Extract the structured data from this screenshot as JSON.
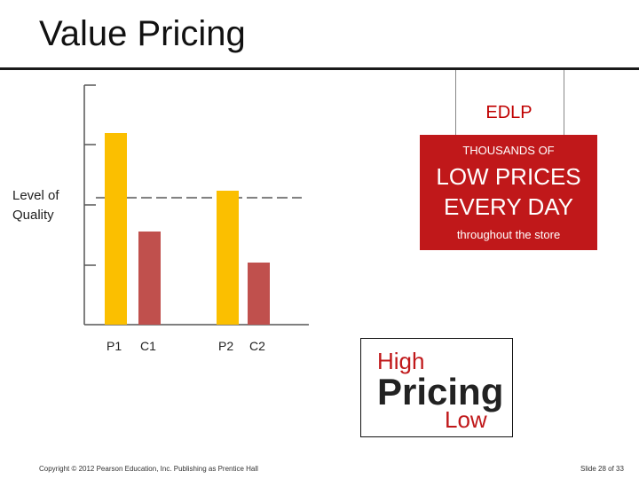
{
  "slide": {
    "title": "Value Pricing",
    "footer_copyright": "Copyright © 2012 Pearson Education, Inc. Publishing as Prentice Hall",
    "footer_slide": "Slide 28 of 33"
  },
  "quality_label": "Level of Quality",
  "chart_data": {
    "type": "bar",
    "categories": [
      "P1",
      "C1",
      "P2",
      "C2"
    ],
    "values": [
      4,
      1.95,
      2.8,
      1.3
    ],
    "ylabel": "Level of Quality",
    "ylim": [
      0,
      5
    ],
    "bar_colors": [
      "#fbbf00",
      "#c0504d",
      "#fbbf00",
      "#c0504d"
    ],
    "reference_line": {
      "style": "dashed",
      "value": 2.65,
      "color": "#808080"
    }
  },
  "edlp": {
    "title": "EDLP",
    "top": "THOUSANDS OF",
    "big": "LOW PRICES EVERY DAY",
    "bottom": "throughout the store",
    "color": "#c0181a"
  },
  "pricing": {
    "high": "High",
    "main": "Pricing",
    "low": "Low"
  }
}
